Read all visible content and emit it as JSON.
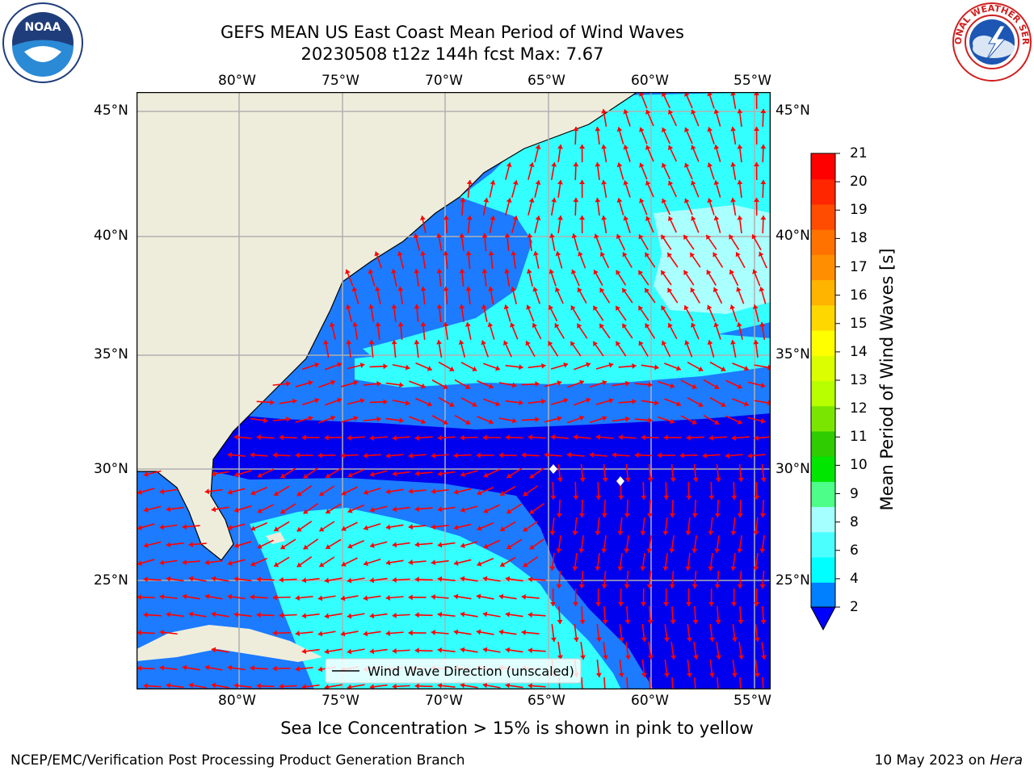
{
  "title": "GEFS MEAN US East Coast Mean Period of Wind Waves",
  "subtitle": "20230508 t12z 144h fcst   Max: 7.67",
  "lon_labels": [
    "80°W",
    "75°W",
    "70°W",
    "65°W",
    "60°W",
    "55°W"
  ],
  "lat_labels": [
    "45°N",
    "40°N",
    "35°N",
    "30°N",
    "25°N"
  ],
  "legend": {
    "label": "Wind Wave Direction (unscaled)"
  },
  "colorbar": {
    "title": "Mean Period of Wind Waves [s]",
    "ticks": [
      "21",
      "20",
      "19",
      "18",
      "17",
      "16",
      "15",
      "14",
      "13",
      "12",
      "11",
      "10",
      "9",
      "8",
      "6",
      "4",
      "2"
    ],
    "colors": [
      "#ff0000",
      "#ff2600",
      "#ff4c00",
      "#ff7200",
      "#ff8f00",
      "#ffb400",
      "#ffd700",
      "#ffff00",
      "#dcff00",
      "#b8ff00",
      "#7ae600",
      "#2ecc00",
      "#00e600",
      "#4dff88",
      "#a6ffff",
      "#4cffff",
      "#00ffff",
      "#007fff"
    ],
    "under_color": "#0000ff"
  },
  "field_colors": {
    "land": "#eeeddc",
    "p2_4": "#0000ee",
    "p4_6": "#1c7bff",
    "p6_8": "#33ffff",
    "p8_9": "#aaffff",
    "arrow": "#ff0000"
  },
  "note": "Sea Ice Concentration > 15% is shown in pink to yellow",
  "footer": {
    "left": "NCEP/EMC/Verification Post Processing Product Generation Branch",
    "date": "10 May 2023 on ",
    "host": "Hera"
  },
  "logos": {
    "noaa": "NOAA",
    "nws": "NATIONAL WEATHER SERVICE"
  }
}
